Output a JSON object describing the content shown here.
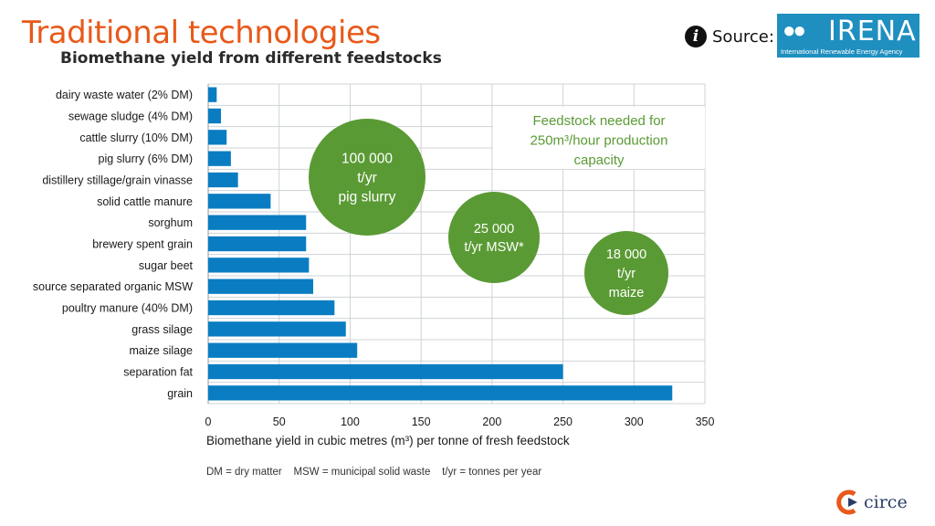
{
  "slide": {
    "title": "Traditional technologies",
    "subtitle": "Biomethane yield from different feedstocks",
    "source_label": "Source:",
    "info_icon": "info-icon",
    "irena_logo": {
      "name": "IRENA",
      "subtitle": "International Renewable Energy Agency"
    },
    "footer_logo": {
      "name": "circe"
    },
    "colors": {
      "title": "#E8591A",
      "bar": "#0A7DC2",
      "bubble": "#5A9A34",
      "text": "#1a1a1a",
      "grid": "#cfd3d6"
    }
  },
  "chart_data": {
    "type": "bar",
    "orientation": "horizontal",
    "categories": [
      "dairy waste water (2% DM)",
      "sewage sludge (4% DM)",
      "cattle slurry (10% DM)",
      "pig slurry (6% DM)",
      "distillery stillage/grain vinasse",
      "solid cattle manure",
      "sorghum",
      "brewery spent grain",
      "sugar beet",
      "source separated organic MSW",
      "poultry manure (40% DM)",
      "grass silage",
      "maize silage",
      "separation fat",
      "grain"
    ],
    "values": [
      6,
      9,
      13,
      16,
      21,
      44,
      69,
      69,
      71,
      74,
      89,
      97,
      105,
      250,
      327
    ],
    "xlabel": "Biomethane yield in cubic metres (m³) per tonne of fresh feedstock",
    "xlim": [
      0,
      350
    ],
    "xticks": [
      "0",
      "50",
      "100",
      "150",
      "200",
      "250",
      "300",
      "350"
    ],
    "grid": true,
    "note": "DM = dry matter    MSW = municipal solid waste    t/yr = tonnes per year",
    "callout": "Feedstock needed for 250m³/hour production capacity",
    "callout_lines": [
      "Feedstock needed for",
      "250m³/hour production",
      "capacity"
    ],
    "bubbles": [
      {
        "lines": [
          "100 000",
          "t/yr",
          "pig slurry"
        ]
      },
      {
        "lines": [
          "25 000",
          "t/yr MSW*"
        ]
      },
      {
        "lines": [
          "18 000",
          "t/yr",
          "maize"
        ]
      }
    ]
  }
}
